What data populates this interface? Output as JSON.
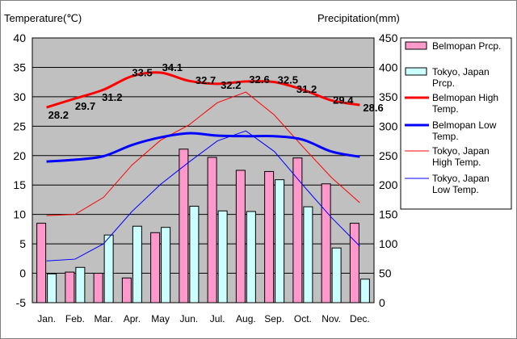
{
  "colors": {
    "plot_bg": "#c0c0c0",
    "belmopan_precip": "#ff99cc",
    "tokyo_precip": "#ccffff",
    "belmopan_high": "#ff0000",
    "belmopan_low": "#0000ff",
    "tokyo_high": "#ff0000",
    "tokyo_low": "#0000ff"
  },
  "chart_data": {
    "type": "bar",
    "title": "",
    "ylabel_left": "Temperature(℃)",
    "ylabel_right": "Precipitation(mm)",
    "ylim_left": [
      -5,
      40
    ],
    "ylim_right": [
      0,
      450
    ],
    "yticks_left": [
      "40",
      "35",
      "30",
      "25",
      "20",
      "15",
      "10",
      "5",
      "0",
      "-5"
    ],
    "yticks_right": [
      "450",
      "400",
      "350",
      "300",
      "250",
      "200",
      "150",
      "100",
      "50",
      "0"
    ],
    "grid": true,
    "legend_position": "right",
    "categories": [
      "Jan.",
      "Feb.",
      "Mar.",
      "Apr.",
      "May",
      "Jun.",
      "Jul.",
      "Aug.",
      "Sep.",
      "Oct.",
      "Nov.",
      "Dec."
    ],
    "series": [
      {
        "name": "Belmopan Prcp.",
        "type": "bar",
        "axis": "right",
        "values": [
          135,
          52,
          50,
          42,
          119,
          261,
          247,
          225,
          223,
          246,
          202,
          135
        ]
      },
      {
        "name": "Tokyo, Japan Prcp.",
        "type": "bar",
        "axis": "right",
        "values": [
          49,
          60,
          115,
          130,
          128,
          164,
          156,
          155,
          209,
          163,
          93,
          40
        ]
      },
      {
        "name": "Belmopan High Temp.",
        "type": "line",
        "axis": "left",
        "values": [
          28.2,
          29.7,
          31.2,
          33.5,
          34.1,
          32.7,
          32.2,
          32.6,
          32.5,
          31.2,
          29.4,
          28.6
        ]
      },
      {
        "name": "Belmopan Low Temp.",
        "type": "line",
        "axis": "left",
        "values": [
          19.0,
          19.3,
          19.9,
          21.8,
          23.1,
          23.8,
          23.4,
          23.3,
          23.3,
          22.7,
          20.7,
          19.8
        ]
      },
      {
        "name": "Tokyo, Japan High Temp.",
        "type": "line",
        "axis": "left",
        "values": [
          9.8,
          10.0,
          12.9,
          18.4,
          22.6,
          25.2,
          29.0,
          30.8,
          26.9,
          21.5,
          16.3,
          12.0
        ]
      },
      {
        "name": "Tokyo, Japan Low Temp.",
        "type": "line",
        "axis": "left",
        "values": [
          2.1,
          2.4,
          5.0,
          10.5,
          15.1,
          18.9,
          22.5,
          24.2,
          20.7,
          15.0,
          9.5,
          4.6
        ]
      }
    ],
    "data_labels": {
      "series": "Belmopan High Temp.",
      "values": [
        "28.2",
        "29.7",
        "31.2",
        "33.5",
        "34.1",
        "32.7",
        "32.2",
        "32.6",
        "32.5",
        "31.2",
        "29.4",
        "28.6"
      ]
    },
    "legend": [
      {
        "lines": [
          "Belmopan Prcp."
        ],
        "series": "Belmopan Prcp."
      },
      {
        "lines": [
          "Tokyo, Japan",
          "Prcp."
        ],
        "series": "Tokyo, Japan Prcp."
      },
      {
        "lines": [
          "Belmopan High",
          "Temp."
        ],
        "series": "Belmopan High Temp."
      },
      {
        "lines": [
          "Belmopan Low",
          "Temp."
        ],
        "series": "Belmopan Low Temp."
      },
      {
        "lines": [
          "Tokyo, Japan",
          "High Temp."
        ],
        "series": "Tokyo, Japan High Temp."
      },
      {
        "lines": [
          "Tokyo, Japan",
          "Low Temp."
        ],
        "series": "Tokyo, Japan Low Temp."
      }
    ]
  }
}
